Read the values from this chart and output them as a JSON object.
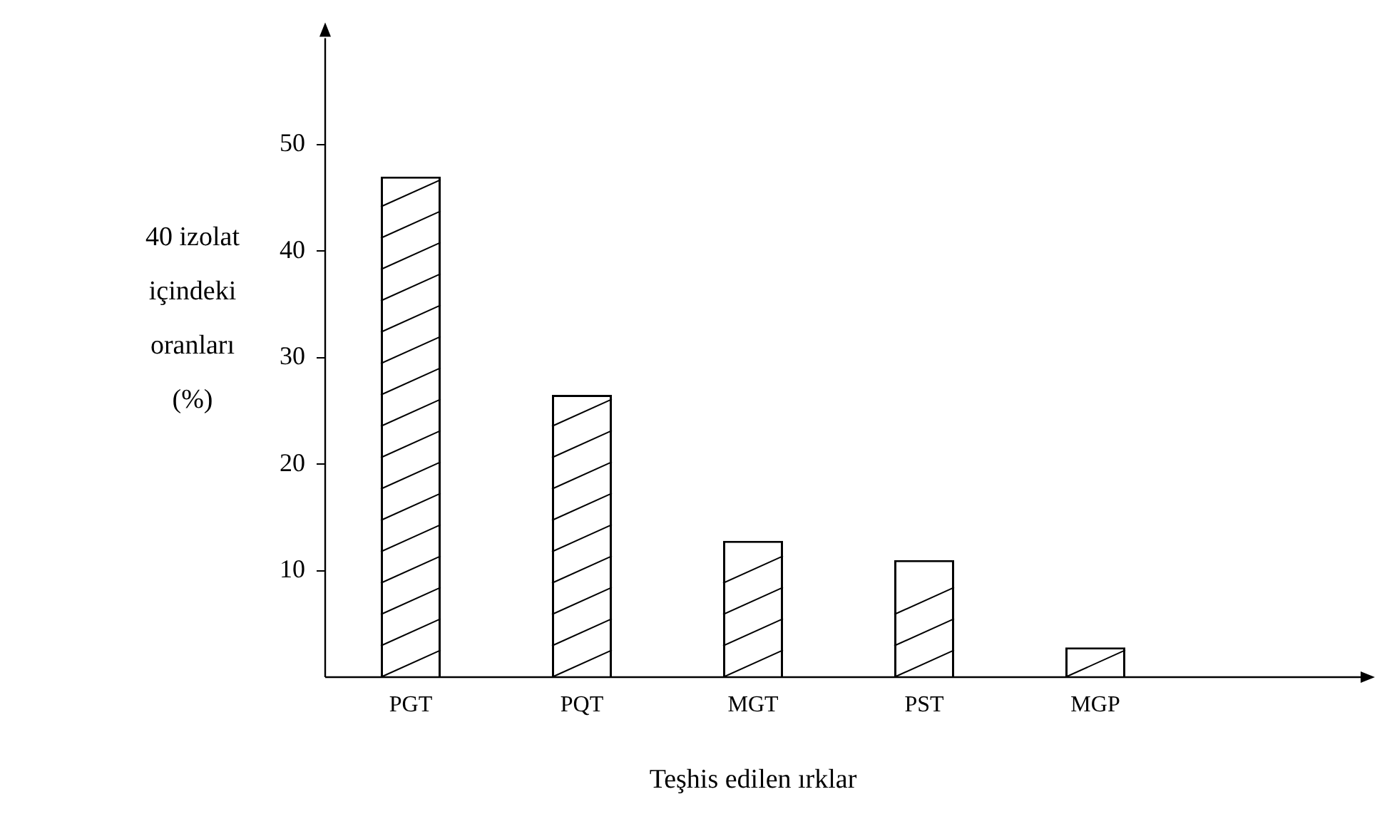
{
  "chart_data": {
    "type": "bar",
    "categories": [
      "PGT",
      "PQT",
      "MGT",
      "PST",
      "MGP"
    ],
    "values": [
      47,
      26.5,
      12.8,
      11,
      2.8
    ],
    "color": "#ffffff",
    "xlabel": "Teşhis edilen ırklar",
    "ylabel": "40 izolat içindeki oranları (%)",
    "ylim": [
      0,
      60
    ],
    "yticks": [
      10,
      20,
      30,
      40,
      50
    ],
    "grid": false,
    "legend": false
  }
}
